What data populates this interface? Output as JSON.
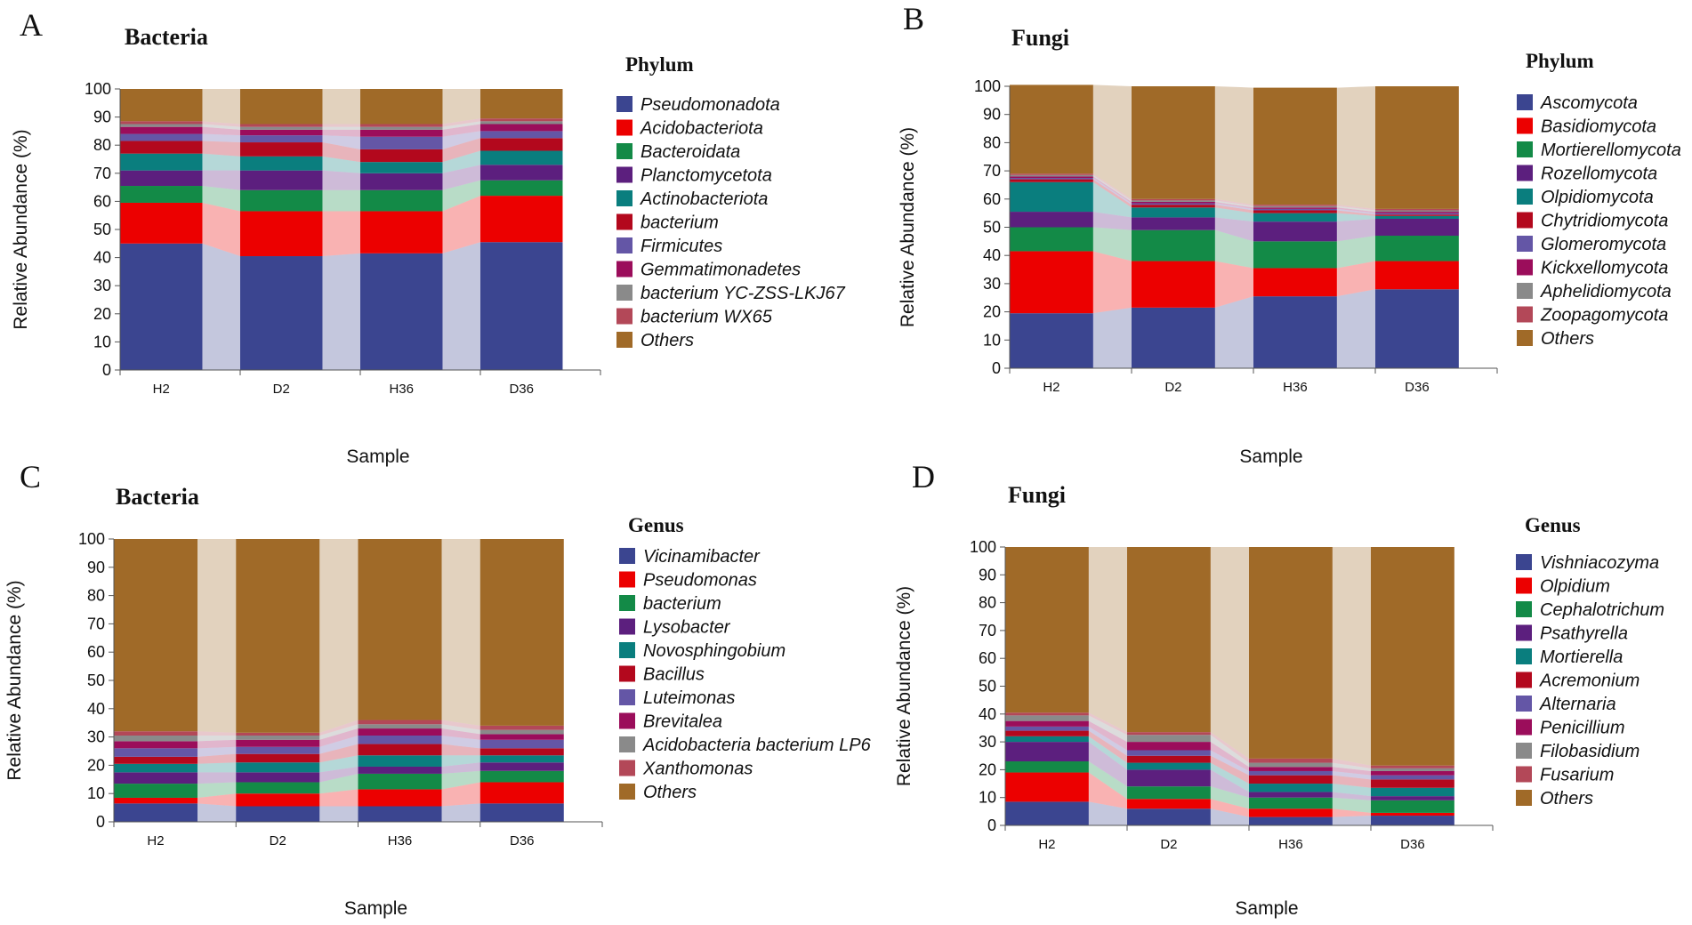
{
  "chart_data": [
    {
      "panel": "A",
      "type": "bar",
      "stacked": true,
      "title": "Bacteria",
      "legend_title": "Phylum",
      "xlabel": "Sample",
      "ylabel": "Relative Abundance (%)",
      "ylim": [
        0,
        100
      ],
      "yticks": [
        0,
        10,
        20,
        30,
        40,
        50,
        60,
        70,
        80,
        90,
        100
      ],
      "categories": [
        "H2",
        "D2",
        "H36",
        "D36"
      ],
      "series": [
        {
          "name": "Pseudomonadota",
          "color": "#3b4590",
          "values": [
            45,
            40.5,
            41.5,
            45.5
          ]
        },
        {
          "name": "Acidobacteriota",
          "color": "#ec0000",
          "values": [
            14.5,
            16,
            15,
            16.5
          ]
        },
        {
          "name": "Bacteroidata",
          "color": "#138a47",
          "values": [
            6,
            7.5,
            7.5,
            5.5
          ]
        },
        {
          "name": "Planctomycetota",
          "color": "#5c1f7e",
          "values": [
            5.5,
            7,
            6,
            5.5
          ]
        },
        {
          "name": "Actinobacteriota",
          "color": "#0a7e7e",
          "values": [
            6,
            5,
            4,
            5
          ]
        },
        {
          "name": "bacterium",
          "color": "#b3081d",
          "values": [
            4.5,
            5,
            4.5,
            4.5
          ]
        },
        {
          "name": "Firmicutes",
          "color": "#6456a6",
          "values": [
            2.5,
            2.5,
            4.5,
            2.5
          ]
        },
        {
          "name": "Gemmatimonadetes",
          "color": "#9b0d5b",
          "values": [
            2.5,
            2,
            2.5,
            2.5
          ]
        },
        {
          "name": "bacterium YC-ZSS-LKJ67",
          "color": "#8a8a8a",
          "values": [
            1,
            1,
            1,
            1
          ]
        },
        {
          "name": "bacterium WX65",
          "color": "#b34858",
          "values": [
            1,
            1,
            1,
            1
          ]
        },
        {
          "name": "Others",
          "color": "#a06a28",
          "values": [
            11.5,
            12.5,
            12.5,
            10.5
          ]
        }
      ]
    },
    {
      "panel": "B",
      "type": "bar",
      "stacked": true,
      "title": "Fungi",
      "legend_title": "Phylum",
      "xlabel": "Sample",
      "ylabel": "Relative Abundance (%)",
      "ylim": [
        0,
        100
      ],
      "yticks": [
        0,
        10,
        20,
        30,
        40,
        50,
        60,
        70,
        80,
        90,
        100
      ],
      "categories": [
        "H2",
        "D2",
        "H36",
        "D36"
      ],
      "series": [
        {
          "name": "Ascomycota",
          "color": "#3b4590",
          "values": [
            19.5,
            21.5,
            25.5,
            28
          ]
        },
        {
          "name": "Basidiomycota",
          "color": "#ec0000",
          "values": [
            22,
            16.5,
            10,
            10
          ]
        },
        {
          "name": "Mortierellomycota",
          "color": "#138a47",
          "values": [
            8.5,
            11,
            9.5,
            9
          ]
        },
        {
          "name": "Rozellomycota",
          "color": "#5c1f7e",
          "values": [
            5.5,
            4.5,
            7,
            6
          ]
        },
        {
          "name": "Olpidiomycota",
          "color": "#0a7e7e",
          "values": [
            10.5,
            3.5,
            3,
            1
          ]
        },
        {
          "name": "Chytridiomycota",
          "color": "#b3081d",
          "values": [
            1,
            1,
            1,
            0.5
          ]
        },
        {
          "name": "Glomeromycota",
          "color": "#6456a6",
          "values": [
            0.5,
            0.5,
            0.5,
            0.5
          ]
        },
        {
          "name": "Kickxellomycota",
          "color": "#9b0d5b",
          "values": [
            0.5,
            0.5,
            0.5,
            0.5
          ]
        },
        {
          "name": "Aphelidiomycota",
          "color": "#8a8a8a",
          "values": [
            0.5,
            0.5,
            0.5,
            0.5
          ]
        },
        {
          "name": "Zoopagomycota",
          "color": "#b34858",
          "values": [
            0.5,
            0.5,
            0.5,
            0.5
          ]
        },
        {
          "name": "Others",
          "color": "#a06a28",
          "values": [
            31.5,
            40,
            41.5,
            43.5
          ]
        }
      ]
    },
    {
      "panel": "C",
      "type": "bar",
      "stacked": true,
      "title": "Bacteria",
      "legend_title": "Genus",
      "xlabel": "Sample",
      "ylabel": "Relative Abundance (%)",
      "ylim": [
        0,
        100
      ],
      "yticks": [
        0,
        10,
        20,
        30,
        40,
        50,
        60,
        70,
        80,
        90,
        100
      ],
      "categories": [
        "H2",
        "D2",
        "H36",
        "D36"
      ],
      "series": [
        {
          "name": "Vicinamibacter",
          "color": "#3b4590",
          "values": [
            6.5,
            5.5,
            5.5,
            6.5
          ]
        },
        {
          "name": "Pseudomonas",
          "color": "#ec0000",
          "values": [
            2,
            4.5,
            6,
            7.5
          ]
        },
        {
          "name": "bacterium",
          "color": "#138a47",
          "values": [
            5,
            4,
            5.5,
            4
          ]
        },
        {
          "name": "Lysobacter",
          "color": "#5c1f7e",
          "values": [
            4,
            3.5,
            2.5,
            3
          ]
        },
        {
          "name": "Novosphingobium",
          "color": "#0a7e7e",
          "values": [
            3,
            3.5,
            4,
            2.5
          ]
        },
        {
          "name": "Bacillus",
          "color": "#b3081d",
          "values": [
            2.5,
            3,
            4,
            2.5
          ]
        },
        {
          "name": "Luteimonas",
          "color": "#6456a6",
          "values": [
            3,
            2.5,
            3,
            3
          ]
        },
        {
          "name": "Brevitalea",
          "color": "#9b0d5b",
          "values": [
            2.5,
            2.5,
            2.5,
            2
          ]
        },
        {
          "name": "Acidobacteria bacterium LP6",
          "color": "#8a8a8a",
          "values": [
            2,
            1.5,
            1.5,
            1.5
          ]
        },
        {
          "name": "Xanthomonas",
          "color": "#b34858",
          "values": [
            1.5,
            1,
            1.5,
            1.5
          ]
        },
        {
          "name": "Others",
          "color": "#a06a28",
          "values": [
            68,
            68.5,
            64,
            66
          ]
        }
      ]
    },
    {
      "panel": "D",
      "type": "bar",
      "stacked": true,
      "title": "Fungi",
      "legend_title": "Genus",
      "xlabel": "Sample",
      "ylabel": "Relative Abundance (%)",
      "ylim": [
        0,
        100
      ],
      "yticks": [
        0,
        10,
        20,
        30,
        40,
        50,
        60,
        70,
        80,
        90,
        100
      ],
      "categories": [
        "H2",
        "D2",
        "H36",
        "D36"
      ],
      "series": [
        {
          "name": "Vishniacozyma",
          "color": "#3b4590",
          "values": [
            8.5,
            6,
            3,
            3.5
          ]
        },
        {
          "name": "Olpidium",
          "color": "#ec0000",
          "values": [
            10.5,
            3.5,
            3,
            1
          ]
        },
        {
          "name": "Cephalotrichum",
          "color": "#138a47",
          "values": [
            4,
            4.5,
            4,
            4.5
          ]
        },
        {
          "name": "Psathyrella",
          "color": "#5c1f7e",
          "values": [
            7,
            6,
            2,
            1.5
          ]
        },
        {
          "name": "Mortierella",
          "color": "#0a7e7e",
          "values": [
            2,
            2.5,
            3,
            3
          ]
        },
        {
          "name": "Acremonium",
          "color": "#b3081d",
          "values": [
            2,
            2.5,
            3,
            3
          ]
        },
        {
          "name": "Alternaria",
          "color": "#6456a6",
          "values": [
            1.5,
            2,
            1.5,
            1.5
          ]
        },
        {
          "name": "Penicillium",
          "color": "#9b0d5b",
          "values": [
            2,
            3,
            1.5,
            1.5
          ]
        },
        {
          "name": "Filobasidium",
          "color": "#8a8a8a",
          "values": [
            2,
            2.5,
            1.5,
            1
          ]
        },
        {
          "name": "Fusarium",
          "color": "#b34858",
          "values": [
            1,
            1,
            1.5,
            1
          ]
        },
        {
          "name": "Others",
          "color": "#a06a28",
          "values": [
            59.5,
            66.5,
            76,
            78.5
          ]
        }
      ]
    }
  ]
}
